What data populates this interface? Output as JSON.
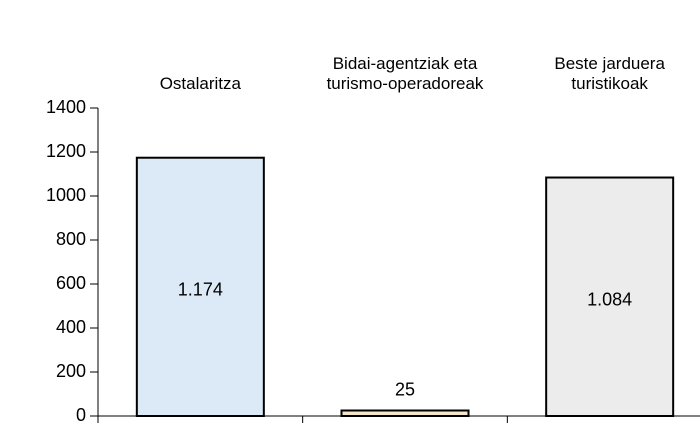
{
  "chart_data": {
    "type": "bar",
    "categories": [
      "Ostalaritza",
      "Bidai-agentziak eta turismo-operadoreak",
      "Beste jarduera turistikoak"
    ],
    "values": [
      1174,
      25,
      1084
    ],
    "value_labels": [
      "1.174",
      "25",
      "1.084"
    ],
    "colors": [
      "#dce9f6",
      "#f5e6c8",
      "#ececec"
    ],
    "ylim": [
      0,
      1400
    ],
    "yticks": [
      0,
      200,
      400,
      600,
      800,
      1000,
      1200,
      1400
    ],
    "grid": false
  }
}
